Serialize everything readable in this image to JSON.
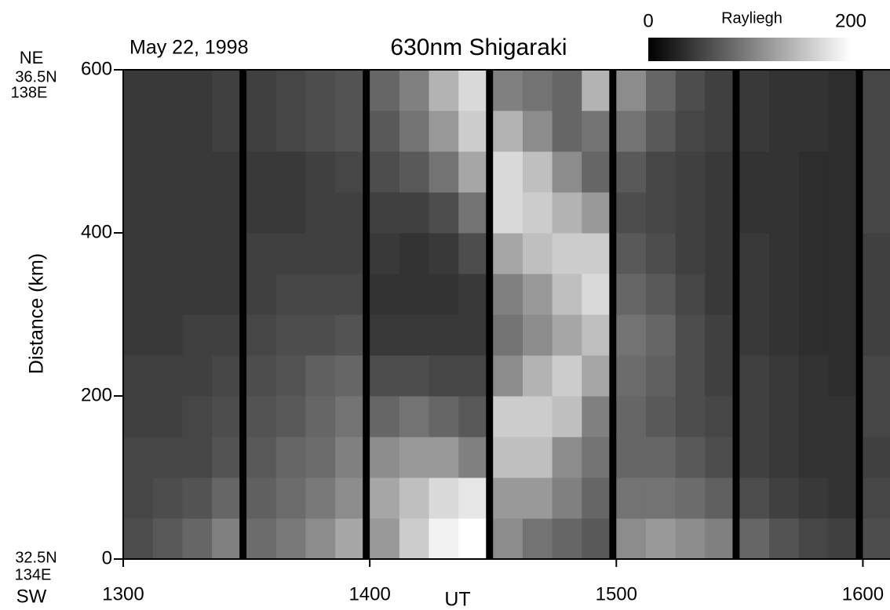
{
  "chart_data": {
    "type": "heatmap",
    "title": "630nm Shigaraki",
    "subtitle": "May 22, 1998",
    "x_label": "UT",
    "y_label": "Distance (km)",
    "top_corner": [
      "NE",
      "36.5N",
      "138E"
    ],
    "bottom_corner": [
      "32.5N",
      "134E",
      "SW"
    ],
    "colorbar_label": "Rayliegh",
    "zlim": [
      0,
      200
    ],
    "zticks": [
      0,
      200
    ],
    "xlim": [
      1300,
      1611
    ],
    "ylim": [
      0,
      600
    ],
    "xticks": [
      1300,
      1400,
      1500,
      1600
    ],
    "yticks": [
      0,
      200,
      400,
      600
    ],
    "xbins": [
      1300,
      1312,
      1324,
      1336,
      1347,
      1350,
      1362,
      1374,
      1386,
      1397,
      1400,
      1412,
      1424,
      1436,
      1447,
      1450,
      1462,
      1474,
      1486,
      1497,
      1500,
      1512,
      1524,
      1536,
      1547,
      1550,
      1562,
      1574,
      1586,
      1597,
      1600,
      1611
    ],
    "ybins": [
      0,
      50,
      100,
      150,
      200,
      250,
      300,
      350,
      400,
      450,
      500,
      550,
      600
    ],
    "values": [
      [
        60,
        55,
        55,
        50,
        50,
        45,
        45,
        45,
        45,
        45,
        45,
        45
      ],
      [
        70,
        60,
        55,
        50,
        50,
        45,
        45,
        45,
        45,
        45,
        45,
        45
      ],
      [
        80,
        65,
        55,
        55,
        50,
        50,
        45,
        45,
        45,
        45,
        45,
        45
      ],
      [
        100,
        80,
        65,
        60,
        55,
        50,
        45,
        45,
        45,
        45,
        50,
        50
      ],
      null,
      [
        85,
        75,
        70,
        65,
        60,
        55,
        50,
        50,
        45,
        45,
        50,
        50
      ],
      [
        95,
        85,
        80,
        70,
        65,
        60,
        55,
        50,
        45,
        45,
        55,
        55
      ],
      [
        110,
        95,
        85,
        80,
        75,
        60,
        55,
        50,
        50,
        50,
        60,
        60
      ],
      [
        130,
        110,
        100,
        90,
        80,
        65,
        55,
        50,
        50,
        55,
        65,
        65
      ],
      null,
      [
        120,
        130,
        110,
        80,
        60,
        45,
        40,
        45,
        50,
        60,
        70,
        80
      ],
      [
        160,
        150,
        120,
        90,
        60,
        45,
        40,
        40,
        50,
        70,
        90,
        100
      ],
      [
        190,
        170,
        120,
        80,
        55,
        45,
        40,
        45,
        60,
        90,
        120,
        140
      ],
      [
        200,
        180,
        100,
        70,
        55,
        45,
        45,
        60,
        90,
        130,
        160,
        170
      ],
      null,
      [
        110,
        120,
        150,
        160,
        110,
        90,
        100,
        130,
        170,
        170,
        140,
        100
      ],
      [
        90,
        120,
        150,
        160,
        140,
        110,
        120,
        150,
        160,
        150,
        110,
        90
      ],
      [
        80,
        100,
        110,
        150,
        160,
        130,
        150,
        160,
        140,
        110,
        80,
        80
      ],
      [
        70,
        80,
        90,
        100,
        130,
        150,
        170,
        160,
        120,
        80,
        90,
        140
      ],
      null,
      [
        110,
        90,
        80,
        80,
        85,
        90,
        80,
        70,
        60,
        70,
        90,
        110
      ],
      [
        120,
        90,
        80,
        70,
        75,
        80,
        70,
        60,
        55,
        55,
        70,
        80
      ],
      [
        110,
        85,
        70,
        60,
        60,
        60,
        55,
        50,
        50,
        50,
        55,
        60
      ],
      [
        100,
        75,
        60,
        55,
        50,
        50,
        45,
        45,
        45,
        45,
        50,
        50
      ],
      null,
      [
        80,
        60,
        50,
        50,
        50,
        45,
        45,
        45,
        40,
        40,
        45,
        45
      ],
      [
        65,
        50,
        45,
        45,
        45,
        40,
        40,
        40,
        40,
        40,
        40,
        40
      ],
      [
        55,
        45,
        40,
        40,
        40,
        35,
        35,
        35,
        35,
        35,
        40,
        40
      ],
      [
        50,
        40,
        40,
        40,
        35,
        35,
        35,
        35,
        35,
        35,
        35,
        35
      ],
      null,
      [
        60,
        55,
        50,
        55,
        55,
        50,
        50,
        50,
        55,
        55,
        55,
        55
      ]
    ]
  }
}
